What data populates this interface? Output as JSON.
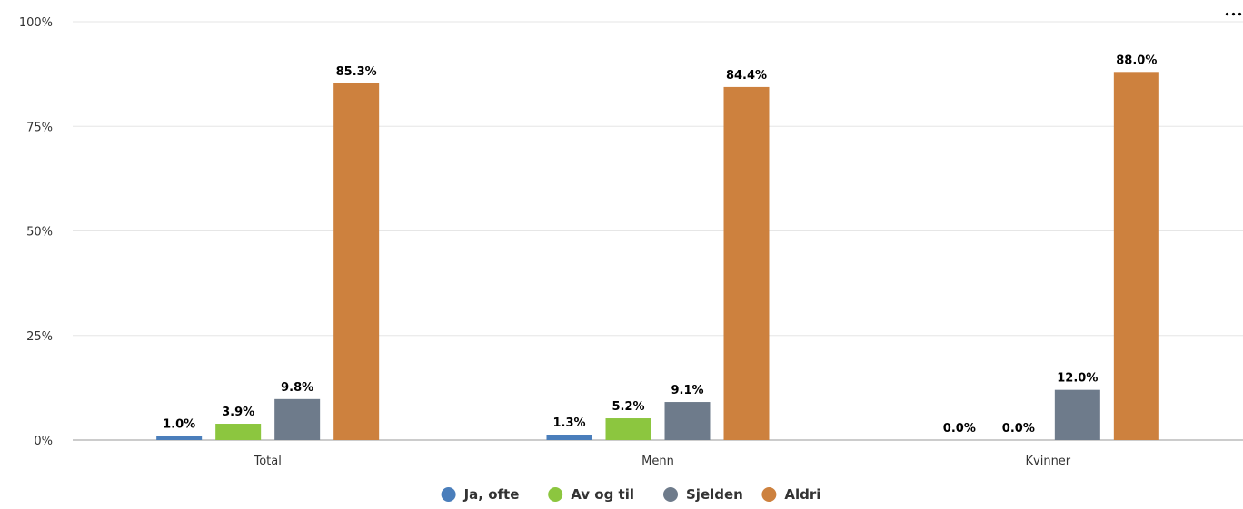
{
  "title": "...",
  "chart_data": {
    "type": "bar",
    "title": "",
    "xlabel": "",
    "ylabel": "",
    "ylim": [
      0,
      100
    ],
    "yticks": [
      "0%",
      "25%",
      "50%",
      "75%",
      "100%"
    ],
    "categories": [
      "Total",
      "Menn",
      "Kvinner"
    ],
    "series": [
      {
        "name": "Ja, ofte",
        "color": "#4A7EBB",
        "values": [
          1.0,
          1.3,
          0.0
        ],
        "labels": [
          "1.0%",
          "1.3%",
          "0.0%"
        ]
      },
      {
        "name": "Av og til",
        "color": "#8CC63F",
        "values": [
          3.9,
          5.2,
          0.0
        ],
        "labels": [
          "3.9%",
          "5.2%",
          "0.0%"
        ]
      },
      {
        "name": "Sjelden",
        "color": "#6E7B8B",
        "values": [
          9.8,
          9.1,
          12.0
        ],
        "labels": [
          "9.8%",
          "9.1%",
          "12.0%"
        ]
      },
      {
        "name": "Aldri",
        "color": "#CD813E",
        "values": [
          85.3,
          84.4,
          88.0
        ],
        "labels": [
          "85.3%",
          "84.4%",
          "88.0%"
        ]
      }
    ],
    "grid": true,
    "legend_position": "bottom-center"
  }
}
